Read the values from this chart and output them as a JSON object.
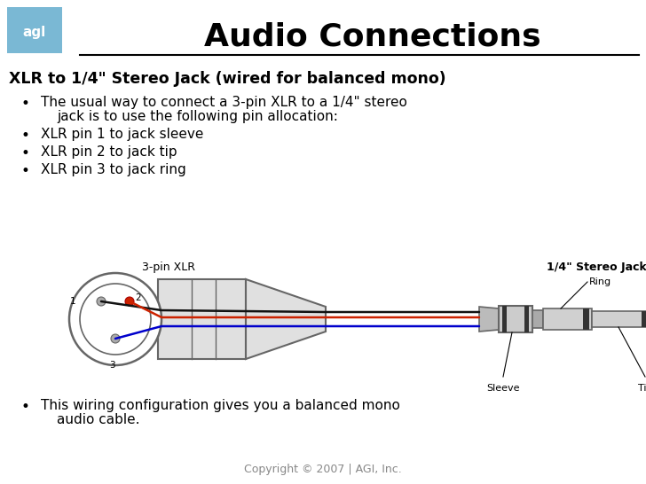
{
  "title": "Audio Connections",
  "subtitle": "XLR to 1/4\" Stereo Jack (wired for balanced mono)",
  "bullet1": "The usual way to connect a 3-pin XLR to a 1/4\" stereo",
  "bullet1b": "jack is to use the following pin allocation:",
  "bullet2": "XLR pin 1 to jack sleeve",
  "bullet3": "XLR pin 2 to jack tip",
  "bullet4": "XLR pin 3 to jack ring",
  "footer_bullet1": "This wiring configuration gives you a balanced mono",
  "footer_bullet2": "audio cable.",
  "copyright": "Copyright © 2007 | AGI, Inc.",
  "agl_box_color": "#7ab8d4",
  "agl_text": "agl",
  "background_color": "#ffffff",
  "diagram_label_xlr": "3-pin XLR",
  "diagram_label_jack": "1/4\" Stereo Jack",
  "diagram_label_ring": "Ring",
  "diagram_label_sleeve": "Sleeve",
  "diagram_label_tip": "Tip",
  "outline_color": "#666666",
  "body_color": "#e0e0e0",
  "dark_band_color": "#333333",
  "wire_black": "#111111",
  "wire_red": "#cc2200",
  "wire_blue": "#0000cc"
}
